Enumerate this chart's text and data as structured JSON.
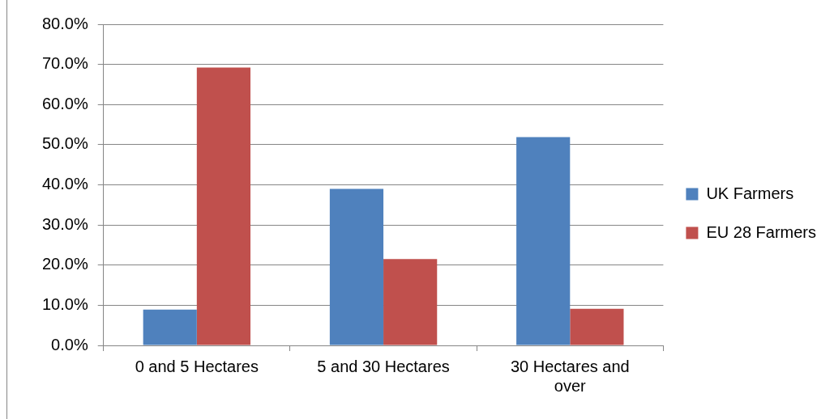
{
  "chart_data": {
    "type": "bar",
    "categories": [
      "0 and 5 Hectares",
      "5 and 30 Hectares",
      "30 Hectares and over"
    ],
    "series": [
      {
        "name": "UK Farmers",
        "color": "#4f81bd",
        "values": [
          8.9,
          39.0,
          51.9
        ]
      },
      {
        "name": "EU 28 Farmers",
        "color": "#c0504d",
        "values": [
          69.2,
          21.5,
          9.1
        ]
      }
    ],
    "ylim": [
      0,
      80
    ],
    "yticks": [
      {
        "value": 0,
        "label": "0.0%"
      },
      {
        "value": 10,
        "label": "10.0%"
      },
      {
        "value": 20,
        "label": "20.0%"
      },
      {
        "value": 30,
        "label": "30.0%"
      },
      {
        "value": 40,
        "label": "40.0%"
      },
      {
        "value": 50,
        "label": "50.0%"
      },
      {
        "value": 60,
        "label": "60.0%"
      },
      {
        "value": 70,
        "label": "70.0%"
      },
      {
        "value": 80,
        "label": "80.0%"
      }
    ],
    "grid": "y",
    "legend": "right"
  }
}
